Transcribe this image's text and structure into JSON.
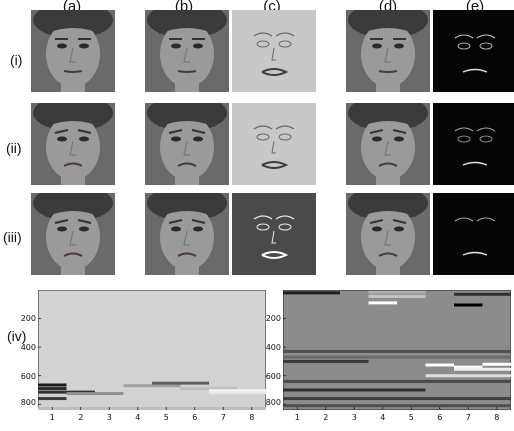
{
  "column_labels": [
    "(a)",
    "(b)",
    "(c)",
    "(d)",
    "(e)"
  ],
  "row_labels": [
    "(i)",
    "(ii)",
    "(iii)",
    "(iv)"
  ],
  "colors": {
    "face_bg": "#6a6a6a",
    "map_c_light": "#c8c8c8",
    "map_c_dark": "#4a4a4a",
    "map_e_bg": "#050505",
    "left_plot_bg": "#d2d2d2",
    "right_plot_bg": "#8c8c8c"
  },
  "chart_data": [
    {
      "type": "heatmap",
      "y_ticks": [
        "200",
        "400",
        "600",
        "800"
      ],
      "x_ticks": [
        "1",
        "2",
        "3",
        "4",
        "5",
        "6",
        "7",
        "8"
      ],
      "xlim": [
        0.5,
        8.5
      ],
      "ylim": [
        0,
        840
      ],
      "background": "#d2d2d2",
      "bands": [
        {
          "col_start": 1,
          "col_end": 1,
          "row": 665,
          "shade": "#1a1a1a"
        },
        {
          "col_start": 1,
          "col_end": 1,
          "row": 690,
          "shade": "#2a2a2a"
        },
        {
          "col_start": 1,
          "col_end": 2,
          "row": 715,
          "shade": "#303030"
        },
        {
          "col_start": 1,
          "col_end": 1,
          "row": 760,
          "shade": "#3a3a3a"
        },
        {
          "col_start": 2,
          "col_end": 3,
          "row": 725,
          "shade": "#909090"
        },
        {
          "col_start": 4,
          "col_end": 5,
          "row": 670,
          "shade": "#a0a0a0"
        },
        {
          "col_start": 5,
          "col_end": 6,
          "row": 652,
          "shade": "#606060"
        },
        {
          "col_start": 6,
          "col_end": 7,
          "row": 690,
          "shade": "#bdbdbd"
        },
        {
          "col_start": 7,
          "col_end": 8,
          "row": 705,
          "shade": "#f5f5f5"
        },
        {
          "col_start": 7,
          "col_end": 8,
          "row": 720,
          "shade": "#e6e6e6"
        },
        {
          "col_start": 1,
          "col_end": 8,
          "row": 830,
          "shade": "#bdbdbd"
        }
      ]
    },
    {
      "type": "heatmap",
      "y_ticks": [
        "200",
        "400",
        "600",
        "800"
      ],
      "x_ticks": [
        "1",
        "2",
        "3",
        "4",
        "5",
        "6",
        "7",
        "8"
      ],
      "xlim": [
        0.5,
        8.5
      ],
      "ylim": [
        0,
        840
      ],
      "background": "#8c8c8c",
      "bands": [
        {
          "col_start": 1,
          "col_end": 2,
          "row": 20,
          "shade": "#1e1e1e"
        },
        {
          "col_start": 4,
          "col_end": 5,
          "row": 15,
          "shade": "#b0b0b0"
        },
        {
          "col_start": 4,
          "col_end": 5,
          "row": 45,
          "shade": "#c4c4c4"
        },
        {
          "col_start": 4,
          "col_end": 4,
          "row": 90,
          "shade": "#ffffff"
        },
        {
          "col_start": 7,
          "col_end": 8,
          "row": 30,
          "shade": "#303030"
        },
        {
          "col_start": 7,
          "col_end": 7,
          "row": 105,
          "shade": "#000000"
        },
        {
          "col_start": 1,
          "col_end": 8,
          "row": 430,
          "shade": "#505050"
        },
        {
          "col_start": 1,
          "col_end": 8,
          "row": 470,
          "shade": "#6a6a6a"
        },
        {
          "col_start": 1,
          "col_end": 3,
          "row": 500,
          "shade": "#3a3a3a"
        },
        {
          "col_start": 6,
          "col_end": 6,
          "row": 525,
          "shade": "#ffffff"
        },
        {
          "col_start": 7,
          "col_end": 7,
          "row": 540,
          "shade": "#ffffff"
        },
        {
          "col_start": 7,
          "col_end": 8,
          "row": 555,
          "shade": "#f0f0f0"
        },
        {
          "col_start": 8,
          "col_end": 8,
          "row": 520,
          "shade": "#ffffff"
        },
        {
          "col_start": 6,
          "col_end": 8,
          "row": 600,
          "shade": "#dcdcdc"
        },
        {
          "col_start": 1,
          "col_end": 8,
          "row": 640,
          "shade": "#4a4a4a"
        },
        {
          "col_start": 1,
          "col_end": 5,
          "row": 700,
          "shade": "#2e2e2e"
        },
        {
          "col_start": 1,
          "col_end": 8,
          "row": 760,
          "shade": "#3e3e3e"
        },
        {
          "col_start": 1,
          "col_end": 8,
          "row": 810,
          "shade": "#4e4e4e"
        }
      ]
    }
  ]
}
